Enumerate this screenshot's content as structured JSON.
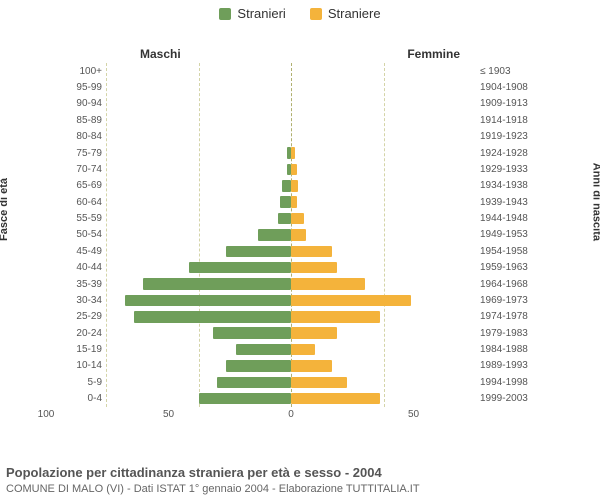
{
  "legend": {
    "male": "Stranieri",
    "female": "Straniere"
  },
  "side_titles": {
    "male": "Maschi",
    "female": "Femmine"
  },
  "axis_labels": {
    "left": "Fasce di età",
    "right": "Anni di nascita"
  },
  "colors": {
    "male": "#6f9e5a",
    "female": "#f4b33b",
    "grid": "#d4d4a8",
    "center": "#b0b070",
    "bg": "#ffffff"
  },
  "chart": {
    "type": "population-pyramid",
    "xlim": 100,
    "xticks_left": [
      100,
      50,
      0
    ],
    "xticks_right": [
      50
    ],
    "bar_height_pct": 70,
    "rows": [
      {
        "age": "100+",
        "birth": "≤ 1903",
        "m": 0,
        "f": 0
      },
      {
        "age": "95-99",
        "birth": "1904-1908",
        "m": 0,
        "f": 0
      },
      {
        "age": "90-94",
        "birth": "1909-1913",
        "m": 0,
        "f": 0
      },
      {
        "age": "85-89",
        "birth": "1914-1918",
        "m": 0,
        "f": 0
      },
      {
        "age": "80-84",
        "birth": "1919-1923",
        "m": 0,
        "f": 0
      },
      {
        "age": "75-79",
        "birth": "1924-1928",
        "m": 2,
        "f": 2
      },
      {
        "age": "70-74",
        "birth": "1929-1933",
        "m": 2,
        "f": 3
      },
      {
        "age": "65-69",
        "birth": "1934-1938",
        "m": 5,
        "f": 4
      },
      {
        "age": "60-64",
        "birth": "1939-1943",
        "m": 6,
        "f": 3
      },
      {
        "age": "55-59",
        "birth": "1944-1948",
        "m": 7,
        "f": 7
      },
      {
        "age": "50-54",
        "birth": "1949-1953",
        "m": 18,
        "f": 8
      },
      {
        "age": "45-49",
        "birth": "1954-1958",
        "m": 35,
        "f": 22
      },
      {
        "age": "40-44",
        "birth": "1959-1963",
        "m": 55,
        "f": 25
      },
      {
        "age": "35-39",
        "birth": "1964-1968",
        "m": 80,
        "f": 40
      },
      {
        "age": "30-34",
        "birth": "1969-1973",
        "m": 90,
        "f": 65
      },
      {
        "age": "25-29",
        "birth": "1974-1978",
        "m": 85,
        "f": 48
      },
      {
        "age": "20-24",
        "birth": "1979-1983",
        "m": 42,
        "f": 25
      },
      {
        "age": "15-19",
        "birth": "1984-1988",
        "m": 30,
        "f": 13
      },
      {
        "age": "10-14",
        "birth": "1989-1993",
        "m": 35,
        "f": 22
      },
      {
        "age": "5-9",
        "birth": "1994-1998",
        "m": 40,
        "f": 30
      },
      {
        "age": "0-4",
        "birth": "1999-2003",
        "m": 50,
        "f": 48
      }
    ]
  },
  "footer": {
    "line1": "Popolazione per cittadinanza straniera per età e sesso - 2004",
    "line2": "COMUNE DI MALO (VI) - Dati ISTAT 1° gennaio 2004 - Elaborazione TUTTITALIA.IT"
  }
}
